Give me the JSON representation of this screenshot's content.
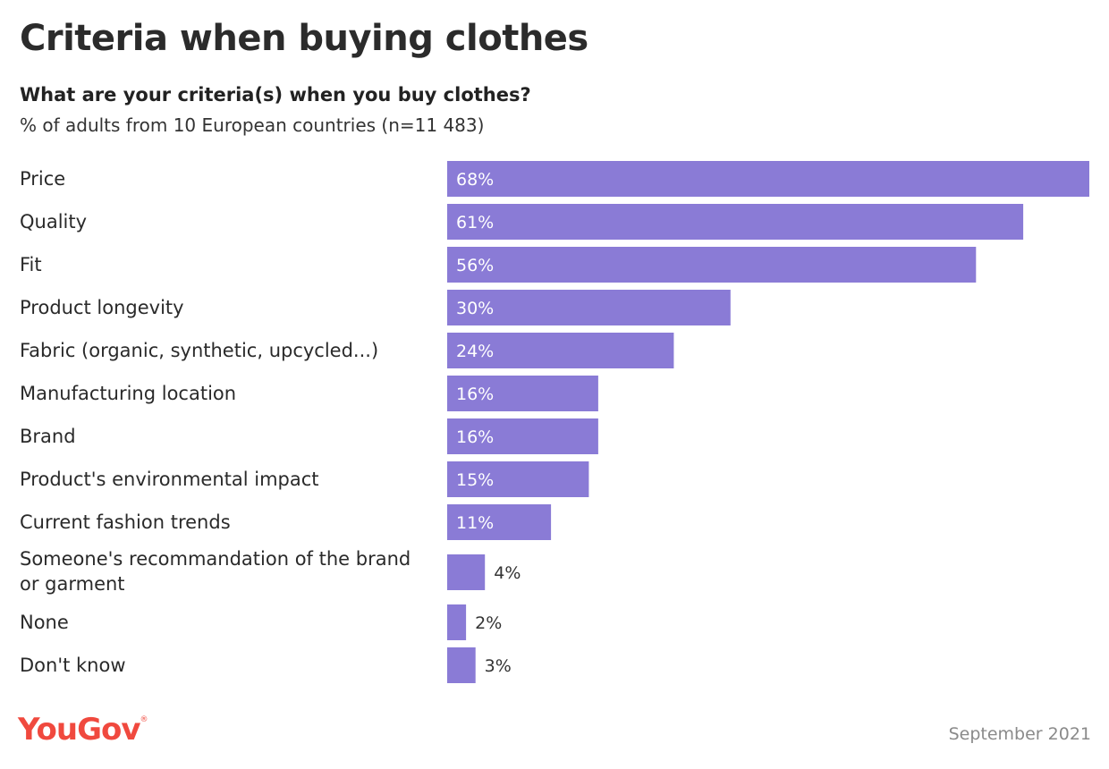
{
  "chart_data": {
    "type": "bar",
    "orientation": "horizontal",
    "title": "Criteria when buying clothes",
    "subtitle": "What are your criteria(s) when you buy clothes?",
    "base_note": "% of adults from 10 European countries (n=11 483)",
    "categories": [
      [
        "Price"
      ],
      [
        "Quality"
      ],
      [
        "Fit"
      ],
      [
        "Product longevity"
      ],
      [
        "Fabric (organic, synthetic, upcycled...)"
      ],
      [
        "Manufacturing location"
      ],
      [
        "Brand"
      ],
      [
        "Product's environmental impact"
      ],
      [
        "Current fashion trends"
      ],
      [
        "Someone's recommandation of the brand",
        "or garment"
      ],
      [
        "None"
      ],
      [
        "Don't know"
      ]
    ],
    "values": [
      68,
      61,
      56,
      30,
      24,
      16,
      16,
      15,
      11,
      4,
      2,
      3
    ],
    "value_labels": [
      "68%",
      "61%",
      "56%",
      "30%",
      "24%",
      "16%",
      "16%",
      "15%",
      "11%",
      "4%",
      "2%",
      "3%"
    ],
    "xlim": [
      0,
      68
    ],
    "grid": false,
    "legend": "none",
    "bar_color": "#8a7bd6"
  },
  "footer": {
    "logo_text": "YouGov",
    "logo_mark": "®",
    "date": "September 2021"
  },
  "colors": {
    "logo": "#f0493e",
    "title": "#2b2b2b"
  }
}
